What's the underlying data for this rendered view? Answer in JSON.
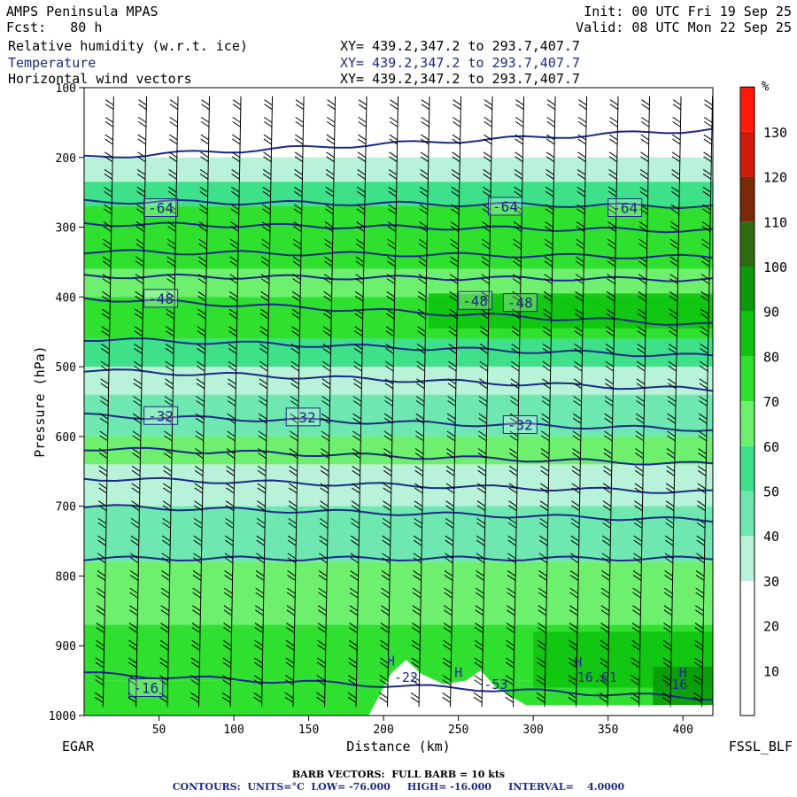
{
  "header": {
    "left_line1": "AMPS Peninsula MPAS",
    "left_line2": "Fcst:   80 h",
    "right_line1": "Init: 00 UTC Fri 19 Sep 25",
    "right_line2": "Valid: 08 UTC Mon 22 Sep 25",
    "fields": [
      {
        "name": "Relative humidity (w.r.t. ice)",
        "xy": "XY= 439.2,347.2 to 293.7,407.7"
      },
      {
        "name": "Temperature",
        "xy": "XY= 439.2,347.2 to 293.7,407.7"
      },
      {
        "name": "Horizontal wind vectors",
        "xy": "XY= 439.2,347.2 to 293.7,407.7"
      }
    ]
  },
  "footer": {
    "line1": "BARB VECTORS:  FULL BARB = 10 kts",
    "line2": "CONTOURS:  UNITS=°C  LOW= -76.000     HIGH= -16.000     INTERVAL=    4.0000"
  },
  "colors": {
    "contour": "#1b2a86",
    "ground": "#ffffff",
    "barb": "#000000"
  },
  "chart_data": {
    "type": "heatmap",
    "xlabel": "Distance (km)",
    "ylabel": "Pressure (hPa)",
    "xlim": [
      0,
      420
    ],
    "ylim": [
      1000,
      100
    ],
    "x_ticks": [
      50,
      100,
      150,
      200,
      250,
      300,
      350,
      400
    ],
    "y_ticks": [
      100,
      200,
      300,
      400,
      500,
      600,
      700,
      800,
      900,
      1000
    ],
    "left_end_label": "EGAR",
    "right_end_label": "FSSL_BLF",
    "colorbar": {
      "unit": "%",
      "ticks": [
        10,
        20,
        30,
        40,
        50,
        60,
        70,
        80,
        90,
        100,
        110,
        120,
        130
      ],
      "colors": [
        "#ffffff",
        "#ffffff",
        "#ffffff",
        "#b8f2d8",
        "#6ee8b0",
        "#3ee08a",
        "#6ef06e",
        "#2fe02f",
        "#10c410",
        "#0a9a0a",
        "#2f6b10",
        "#7a2a08",
        "#d21a0a",
        "#ff1a0a"
      ]
    },
    "rh_bands": [
      {
        "p_top": 100,
        "p_bot": 200,
        "rh": 15
      },
      {
        "p_top": 200,
        "p_bot": 235,
        "rh": 35
      },
      {
        "p_top": 235,
        "p_bot": 270,
        "rh": 55
      },
      {
        "p_top": 270,
        "p_bot": 360,
        "rh": 70
      },
      {
        "p_top": 360,
        "p_bot": 400,
        "rh": 62
      },
      {
        "p_top": 400,
        "p_bot": 460,
        "rh": 75
      },
      {
        "p_top": 460,
        "p_bot": 500,
        "rh": 50
      },
      {
        "p_top": 500,
        "p_bot": 540,
        "rh": 35
      },
      {
        "p_top": 540,
        "p_bot": 600,
        "rh": 45
      },
      {
        "p_top": 600,
        "p_bot": 640,
        "rh": 60
      },
      {
        "p_top": 640,
        "p_bot": 700,
        "rh": 30
      },
      {
        "p_top": 700,
        "p_bot": 780,
        "rh": 40
      },
      {
        "p_top": 780,
        "p_bot": 870,
        "rh": 65
      },
      {
        "p_top": 870,
        "p_bot": 950,
        "rh": 78
      },
      {
        "p_top": 950,
        "p_bot": 1000,
        "rh": 70
      }
    ],
    "rh_patches": [
      {
        "x0": 230,
        "x1": 420,
        "p_top": 395,
        "p_bot": 445,
        "rh": 88
      },
      {
        "x0": 300,
        "x1": 420,
        "p_top": 880,
        "p_bot": 960,
        "rh": 88
      },
      {
        "x0": 380,
        "x1": 420,
        "p_top": 930,
        "p_bot": 990,
        "rh": 98
      }
    ],
    "temperature_contours": [
      {
        "label": "-64",
        "p_left": 270,
        "p_right": 270,
        "label_positions": [
          [
            40,
            272
          ],
          [
            270,
            270
          ],
          [
            350,
            272
          ]
        ]
      },
      {
        "label": "-48",
        "p_left": 402,
        "p_right": 438,
        "label_positions": [
          [
            40,
            402
          ],
          [
            250,
            405
          ],
          [
            280,
            408
          ]
        ]
      },
      {
        "label": "-32",
        "p_left": 570,
        "p_right": 590,
        "label_positions": [
          [
            40,
            570
          ],
          [
            135,
            572
          ],
          [
            280,
            583
          ]
        ]
      },
      {
        "label": "-16",
        "p_left": 960,
        "p_right": 985,
        "label_positions": [
          [
            30,
            960
          ]
        ]
      }
    ],
    "contour_levels": [
      {
        "p_left": 200,
        "p_right": 160
      },
      {
        "p_left": 263,
        "p_right": 270
      },
      {
        "p_left": 295,
        "p_right": 305
      },
      {
        "p_left": 335,
        "p_right": 343
      },
      {
        "p_left": 370,
        "p_right": 375
      },
      {
        "p_left": 402,
        "p_right": 440
      },
      {
        "p_left": 460,
        "p_right": 485
      },
      {
        "p_left": 505,
        "p_right": 533
      },
      {
        "p_left": 570,
        "p_right": 590
      },
      {
        "p_left": 617,
        "p_right": 640
      },
      {
        "p_left": 660,
        "p_right": 680
      },
      {
        "p_left": 700,
        "p_right": 720
      },
      {
        "p_left": 775,
        "p_right": 775
      },
      {
        "p_left": 940,
        "p_right": 975
      }
    ],
    "terrain": [
      [
        0,
        1000
      ],
      [
        190,
        1000
      ],
      [
        205,
        940
      ],
      [
        215,
        920
      ],
      [
        225,
        940
      ],
      [
        240,
        955
      ],
      [
        255,
        950
      ],
      [
        265,
        935
      ],
      [
        275,
        960
      ],
      [
        295,
        985
      ],
      [
        420,
        985
      ]
    ],
    "terrain_labels": [
      {
        "text": "H",
        "x": 205,
        "p": 928
      },
      {
        "text": "H",
        "x": 250,
        "p": 945
      },
      {
        "text": "H",
        "x": 330,
        "p": 930
      },
      {
        "text": "H",
        "x": 400,
        "p": 945
      },
      {
        "text": "-22",
        "x": 215,
        "p": 952
      },
      {
        "text": "-53",
        "x": 275,
        "p": 962
      },
      {
        "text": "-16.61",
        "x": 340,
        "p": 952
      },
      {
        "text": "-16",
        "x": 395,
        "p": 962
      }
    ],
    "barb_columns_km": [
      15,
      37,
      58,
      79,
      100,
      121,
      142,
      163,
      184,
      205,
      226,
      247,
      268,
      289,
      310,
      331,
      352,
      373,
      394,
      415
    ],
    "barb_levels_hpa": [
      125,
      150,
      175,
      200,
      225,
      250,
      275,
      300,
      325,
      350,
      375,
      400,
      425,
      450,
      475,
      500,
      525,
      550,
      575,
      600,
      625,
      650,
      675,
      700,
      725,
      750,
      775,
      800,
      825,
      850,
      875,
      900,
      925,
      950,
      975
    ]
  }
}
